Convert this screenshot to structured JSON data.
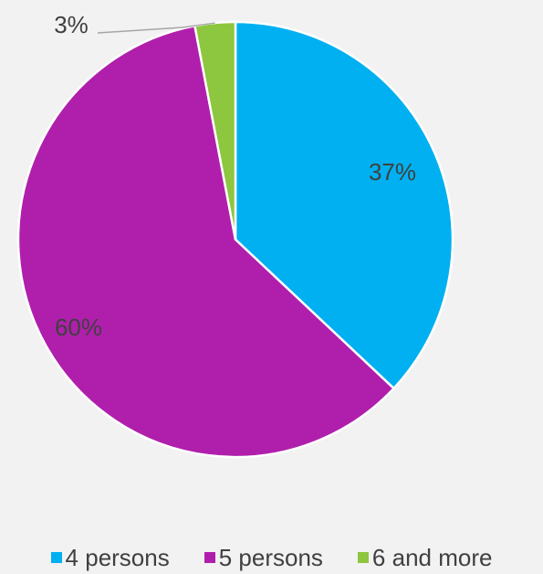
{
  "chart_data": {
    "type": "pie",
    "title": "",
    "categories": [
      "4 persons",
      "5 persons",
      "6 and more"
    ],
    "values": [
      37,
      60,
      3
    ],
    "labels": [
      "37%",
      "60%",
      "3%"
    ],
    "colors": [
      "#00b0f0",
      "#b01fac",
      "#8dc63f"
    ],
    "legend": "bottom",
    "start_angle_deg": 0,
    "direction": "clockwise"
  }
}
